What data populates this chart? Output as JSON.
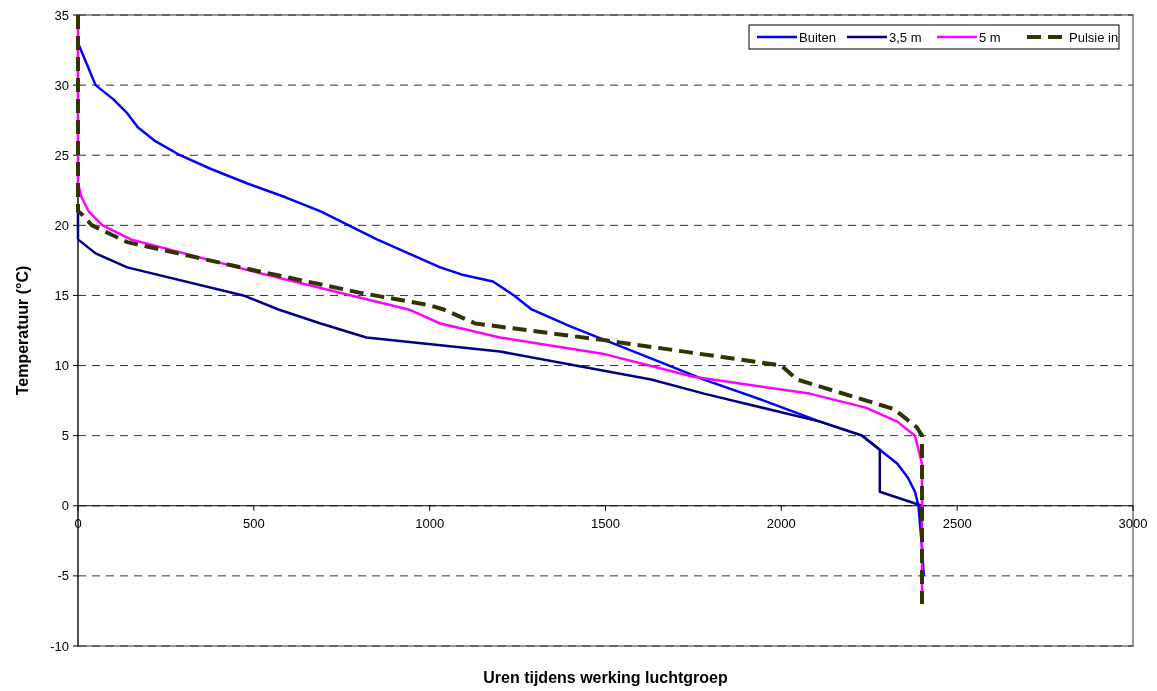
{
  "chart_data": {
    "type": "line",
    "xlabel": "Uren tijdens werking luchtgroep",
    "ylabel": "Temperatuur (°C)",
    "xlim": [
      0,
      3000
    ],
    "ylim": [
      -10,
      35
    ],
    "xticks": [
      0,
      500,
      1000,
      1500,
      2000,
      2500,
      3000
    ],
    "yticks": [
      -10,
      -5,
      0,
      5,
      10,
      15,
      20,
      25,
      30,
      35
    ],
    "grid": "y",
    "legend": "top right",
    "series": [
      {
        "name": "Buiten",
        "color": "#0000ff",
        "line_style": "solid",
        "x": [
          0,
          50,
          100,
          140,
          170,
          220,
          290,
          380,
          480,
          590,
          690,
          770,
          850,
          940,
          1030,
          1090,
          1180,
          1240,
          1290,
          1400,
          1500,
          1640,
          1780,
          1950,
          2110,
          2230,
          2280,
          2330,
          2360,
          2380,
          2390,
          2400,
          2405
        ],
        "values": [
          33,
          30,
          29,
          28,
          27,
          26,
          25,
          24,
          23,
          22,
          21,
          20,
          19,
          18,
          17,
          16.5,
          16,
          15,
          14,
          12.8,
          11.8,
          10.4,
          9,
          7.5,
          6,
          5,
          4,
          3,
          2,
          1,
          0,
          -3,
          -5
        ]
      },
      {
        "name": "3,5 m",
        "color": "#000080",
        "line_style": "solid",
        "x": [
          0,
          0,
          50,
          140,
          470,
          570,
          690,
          820,
          1200,
          1630,
          1780,
          2110,
          2230,
          2280,
          2280,
          2400
        ],
        "values": [
          21,
          19,
          18,
          17,
          15,
          14,
          13,
          12,
          11,
          9,
          8,
          6,
          5,
          4,
          1,
          0
        ]
      },
      {
        "name": "5 m",
        "color": "#ff00ff",
        "line_style": "solid",
        "x": [
          0,
          0,
          10,
          30,
          70,
          150,
          500,
          940,
          1030,
          1200,
          1500,
          1750,
          2080,
          2240,
          2330,
          2380,
          2400,
          2400
        ],
        "values": [
          34,
          23,
          22,
          21,
          20,
          19,
          16.7,
          14,
          13,
          12,
          10.8,
          9.2,
          8,
          7,
          6,
          5,
          3,
          -7
        ]
      },
      {
        "name": "Pulsie in",
        "color": "#333300",
        "line_style": "dashed",
        "x": [
          0,
          0,
          10,
          40,
          140,
          500,
          800,
          1000,
          1040,
          1130,
          1500,
          2000,
          2045,
          2320,
          2385,
          2400,
          2400
        ],
        "values": [
          35,
          21,
          20.8,
          20,
          18.8,
          16.8,
          15.2,
          14.3,
          14,
          13,
          11.8,
          10,
          9,
          6.9,
          5.6,
          5,
          -7
        ]
      }
    ]
  }
}
